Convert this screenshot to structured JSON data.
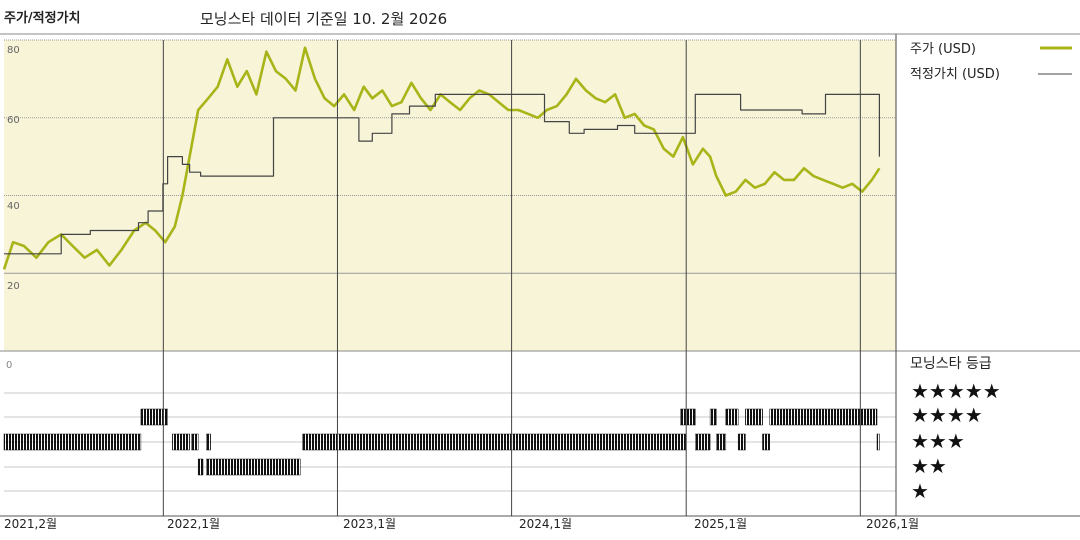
{
  "chart_data": [
    {
      "type": "line",
      "title": "주가/적정가치",
      "subtitle": "모닝스타 데이터 기준일 10. 2월 2026",
      "ylim": [
        0,
        80
      ],
      "yticks": [
        "80",
        "60",
        "40",
        "20"
      ],
      "xlim": [
        "2021-02-01",
        "2026-02-28"
      ],
      "grid": true,
      "legend_position": "top-right",
      "colors": {
        "price": "#a8b418",
        "fair": "#444444",
        "plot_bg": "#f7f4d8"
      },
      "series": [
        {
          "name": "주가 (USD)",
          "x": [
            "2021-02-01",
            "2021-02-20",
            "2021-03-15",
            "2021-04-10",
            "2021-05-05",
            "2021-06-01",
            "2021-06-25",
            "2021-07-20",
            "2021-08-15",
            "2021-09-10",
            "2021-10-05",
            "2021-11-01",
            "2021-11-25",
            "2021-12-15",
            "2022-01-05",
            "2022-01-25",
            "2022-02-10",
            "2022-02-25",
            "2022-03-15",
            "2022-04-05",
            "2022-04-25",
            "2022-05-15",
            "2022-06-05",
            "2022-06-25",
            "2022-07-15",
            "2022-08-05",
            "2022-08-25",
            "2022-09-15",
            "2022-10-05",
            "2022-10-25",
            "2022-11-15",
            "2022-12-05",
            "2022-12-25",
            "2023-01-15",
            "2023-02-05",
            "2023-02-25",
            "2023-03-15",
            "2023-04-05",
            "2023-04-25",
            "2023-05-15",
            "2023-06-05",
            "2023-06-25",
            "2023-07-15",
            "2023-08-05",
            "2023-08-25",
            "2023-09-15",
            "2023-10-05",
            "2023-10-25",
            "2023-11-15",
            "2023-12-05",
            "2023-12-25",
            "2024-01-15",
            "2024-02-05",
            "2024-02-25",
            "2024-03-15",
            "2024-04-05",
            "2024-04-25",
            "2024-05-15",
            "2024-06-05",
            "2024-06-25",
            "2024-07-15",
            "2024-08-05",
            "2024-08-25",
            "2024-09-15",
            "2024-10-05",
            "2024-10-25",
            "2024-11-15",
            "2024-12-05",
            "2024-12-25",
            "2025-01-15",
            "2025-02-05",
            "2025-02-20",
            "2025-03-05",
            "2025-03-25",
            "2025-04-15",
            "2025-05-05",
            "2025-05-25",
            "2025-06-15",
            "2025-07-05",
            "2025-07-25",
            "2025-08-15",
            "2025-09-05",
            "2025-09-25",
            "2025-10-15",
            "2025-11-05",
            "2025-11-25",
            "2025-12-15",
            "2026-01-05",
            "2026-01-25",
            "2026-02-10"
          ],
          "y": [
            21,
            28,
            27,
            24,
            28,
            30,
            27,
            24,
            26,
            22,
            26,
            31,
            33,
            31,
            28,
            32,
            40,
            50,
            62,
            65,
            68,
            75,
            68,
            72,
            66,
            77,
            72,
            70,
            67,
            78,
            70,
            65,
            63,
            66,
            62,
            68,
            65,
            67,
            63,
            64,
            69,
            65,
            62,
            66,
            64,
            62,
            65,
            67,
            66,
            64,
            62,
            62,
            61,
            60,
            62,
            63,
            66,
            70,
            67,
            65,
            64,
            66,
            60,
            61,
            58,
            57,
            52,
            50,
            55,
            48,
            52,
            50,
            45,
            40,
            41,
            44,
            42,
            43,
            46,
            44,
            44,
            47,
            45,
            44,
            43,
            42,
            43,
            41,
            44,
            47
          ]
        },
        {
          "name": "적정가치 (USD)",
          "x": [
            "2021-02-01",
            "2021-03-01",
            "2021-06-01",
            "2021-08-01",
            "2021-11-10",
            "2021-11-30",
            "2021-12-31",
            "2022-01-10",
            "2022-02-10",
            "2022-02-25",
            "2022-03-20",
            "2022-07-10",
            "2022-08-20",
            "2022-10-01",
            "2023-01-01",
            "2023-02-15",
            "2023-03-15",
            "2023-04-25",
            "2023-06-01",
            "2023-07-25",
            "2023-09-10",
            "2023-11-15",
            "2024-02-01",
            "2024-03-10",
            "2024-05-01",
            "2024-06-01",
            "2024-08-10",
            "2024-09-15",
            "2024-11-01",
            "2025-01-20",
            "2025-04-01",
            "2025-04-25",
            "2025-09-01",
            "2025-10-01",
            "2025-10-20",
            "2026-02-05",
            "2026-02-10"
          ],
          "y": [
            25,
            25,
            30,
            31,
            33,
            36,
            43,
            50,
            48,
            46,
            45,
            45,
            60,
            60,
            60,
            54,
            56,
            61,
            63,
            66,
            66,
            66,
            66,
            59,
            56,
            57,
            58,
            56,
            56,
            66,
            66,
            62,
            61,
            61,
            66,
            66,
            50
          ]
        }
      ]
    },
    {
      "type": "heatmap",
      "title": "모닝스타 등급",
      "rating_levels": [
        "★★★★★",
        "★★★★",
        "★★★",
        "★★",
        "★"
      ],
      "xlim": [
        "2021-02-01",
        "2026-02-28"
      ],
      "bottom_left_label": "0",
      "x_tick_labels": [
        "2021,2월",
        "2022,1월",
        "2023,1월",
        "2024,1월",
        "2025,1월",
        "2026,1월"
      ],
      "x_tick_dates": [
        "2021-02-01",
        "2022-01-01",
        "2023-01-01",
        "2024-01-01",
        "2025-01-01",
        "2026-01-01"
      ],
      "periods": [
        {
          "start": "2021-02-01",
          "end": "2021-11-15",
          "stars": 3
        },
        {
          "start": "2021-11-15",
          "end": "2022-01-10",
          "stars": 4
        },
        {
          "start": "2022-01-20",
          "end": "2022-02-25",
          "stars": 3
        },
        {
          "start": "2022-03-01",
          "end": "2022-03-15",
          "stars": 3
        },
        {
          "start": "2022-04-01",
          "end": "2022-04-10",
          "stars": 3
        },
        {
          "start": "2022-03-15",
          "end": "2022-03-25",
          "stars": 2
        },
        {
          "start": "2022-04-01",
          "end": "2022-10-15",
          "stars": 2
        },
        {
          "start": "2022-10-20",
          "end": "2024-12-31",
          "stars": 3
        },
        {
          "start": "2024-12-20",
          "end": "2025-01-20",
          "stars": 4
        },
        {
          "start": "2025-01-20",
          "end": "2025-02-20",
          "stars": 3
        },
        {
          "start": "2025-02-20",
          "end": "2025-03-05",
          "stars": 4
        },
        {
          "start": "2025-03-05",
          "end": "2025-03-25",
          "stars": 3
        },
        {
          "start": "2025-03-25",
          "end": "2025-04-20",
          "stars": 4
        },
        {
          "start": "2025-04-20",
          "end": "2025-05-05",
          "stars": 3
        },
        {
          "start": "2025-05-05",
          "end": "2025-06-10",
          "stars": 4
        },
        {
          "start": "2025-06-10",
          "end": "2025-06-25",
          "stars": 3
        },
        {
          "start": "2025-06-25",
          "end": "2026-02-05",
          "stars": 4
        },
        {
          "start": "2026-02-05",
          "end": "2026-02-10",
          "stars": 3
        }
      ]
    }
  ]
}
